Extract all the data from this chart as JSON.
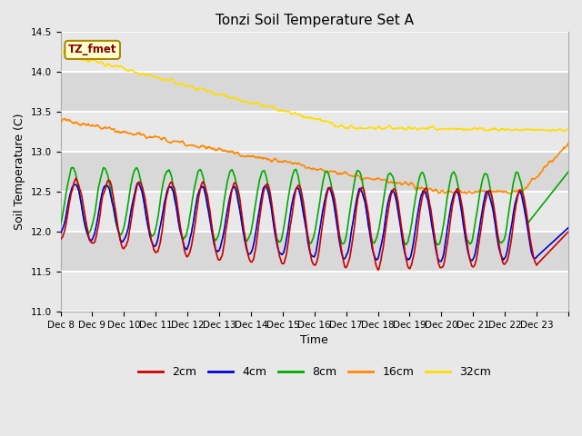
{
  "title": "Tonzi Soil Temperature Set A",
  "xlabel": "Time",
  "ylabel": "Soil Temperature (C)",
  "ylim": [
    11.0,
    14.5
  ],
  "yticks": [
    11.0,
    11.5,
    12.0,
    12.5,
    13.0,
    13.5,
    14.0,
    14.5
  ],
  "xtick_labels": [
    "Dec 8",
    "Dec 9",
    "Dec 10",
    "Dec 11",
    "Dec 12",
    "Dec 13",
    "Dec 14",
    "Dec 15",
    "Dec 16",
    "Dec 17",
    "Dec 18",
    "Dec 19",
    "Dec 20",
    "Dec 21",
    "Dec 22",
    "Dec 23"
  ],
  "colors": {
    "2cm": "#cc0000",
    "4cm": "#0000cc",
    "8cm": "#00aa00",
    "16cm": "#ff8800",
    "32cm": "#ffdd00"
  },
  "annotation_text": "TZ_fmet",
  "annotation_bg": "#ffffcc",
  "annotation_border": "#aa8800",
  "annotation_text_color": "#880000",
  "background_color": "#e8e8e8",
  "plot_bg": "#f0f0f0",
  "n_days": 16,
  "samples_per_day": 48
}
